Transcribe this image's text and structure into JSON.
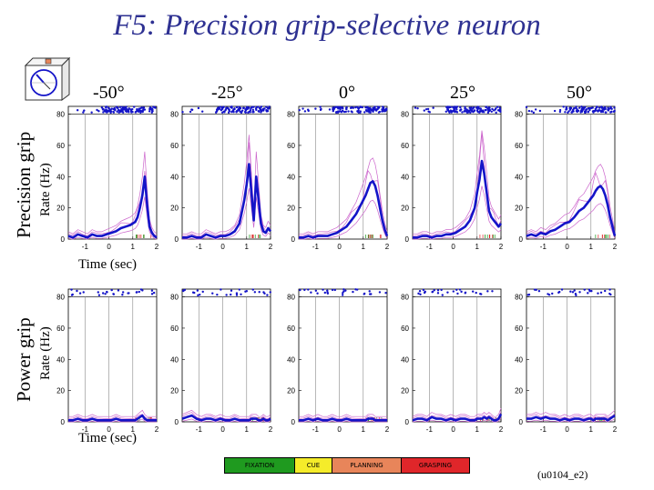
{
  "title": "F5: Precision grip-selective neuron",
  "code_label": "(u0104_e2)",
  "row_labels": [
    "Precision grip",
    "Power grip"
  ],
  "ylabel": "Rate (Hz)",
  "xlabel": "Time (sec)",
  "legend": {
    "items": [
      {
        "label": "FIXATION",
        "color": "#1f9a1f"
      },
      {
        "label": "CUE",
        "color": "#f5ec2a"
      },
      {
        "label": "PLANNING",
        "color": "#e8855a"
      },
      {
        "label": "GRASPING",
        "color": "#e0262a"
      }
    ]
  },
  "colors": {
    "main": "#1414c8",
    "envelope": "#cc66cc",
    "raster": "#1414c8",
    "title": "#2e3192"
  },
  "icon": "rotated-object-dial-icon",
  "chart_data": {
    "type": "line",
    "xlim": [
      -1.7,
      2
    ],
    "ylim": [
      0,
      85
    ],
    "xticks": [
      -1,
      0,
      1,
      2
    ],
    "yticks": [
      0,
      20,
      40,
      60,
      80
    ],
    "event_lines_sec": [
      -1,
      0,
      1
    ],
    "columns": [
      "-50°",
      "-25°",
      "0°",
      "25°",
      "50°"
    ],
    "x": [
      -1.7,
      -1.5,
      -1.3,
      -1.1,
      -0.9,
      -0.7,
      -0.5,
      -0.3,
      -0.1,
      0.1,
      0.3,
      0.5,
      0.7,
      0.9,
      1.0,
      1.1,
      1.2,
      1.3,
      1.4,
      1.5,
      1.6,
      1.7,
      1.8,
      1.9,
      2.0
    ],
    "rows": [
      {
        "name": "Precision grip",
        "panels": [
          [
            2,
            1,
            3,
            2,
            1,
            3,
            2,
            2,
            3,
            4,
            5,
            7,
            8,
            9,
            10,
            11,
            14,
            20,
            28,
            40,
            22,
            8,
            4,
            2,
            1
          ],
          [
            1,
            1,
            2,
            1,
            1,
            3,
            2,
            1,
            2,
            2,
            3,
            5,
            10,
            25,
            35,
            48,
            30,
            12,
            40,
            25,
            10,
            5,
            4,
            7,
            5
          ],
          [
            1,
            1,
            2,
            1,
            2,
            2,
            2,
            3,
            4,
            6,
            8,
            12,
            16,
            22,
            25,
            28,
            32,
            36,
            37,
            34,
            28,
            20,
            12,
            6,
            2
          ],
          [
            1,
            1,
            2,
            2,
            1,
            2,
            2,
            3,
            3,
            4,
            6,
            8,
            12,
            20,
            30,
            38,
            50,
            42,
            30,
            18,
            14,
            12,
            10,
            8,
            10
          ],
          [
            2,
            3,
            2,
            4,
            3,
            5,
            6,
            8,
            10,
            11,
            14,
            18,
            20,
            24,
            26,
            28,
            31,
            33,
            34,
            32,
            28,
            22,
            14,
            8,
            2
          ]
        ]
      },
      {
        "name": "Power grip",
        "panels": [
          [
            1,
            1,
            2,
            1,
            1,
            2,
            1,
            1,
            1,
            1,
            2,
            1,
            1,
            1,
            1,
            1,
            2,
            3,
            4,
            2,
            1,
            1,
            1,
            1,
            1
          ],
          [
            2,
            3,
            4,
            2,
            1,
            2,
            2,
            1,
            2,
            1,
            1,
            2,
            1,
            1,
            1,
            1,
            2,
            2,
            2,
            1,
            1,
            2,
            1,
            1,
            2
          ],
          [
            1,
            1,
            2,
            1,
            2,
            1,
            1,
            2,
            1,
            1,
            2,
            1,
            1,
            1,
            1,
            1,
            2,
            2,
            2,
            1,
            1,
            1,
            1,
            1,
            1
          ],
          [
            1,
            2,
            2,
            1,
            3,
            2,
            2,
            1,
            2,
            1,
            2,
            2,
            1,
            1,
            2,
            2,
            2,
            3,
            2,
            3,
            2,
            1,
            1,
            2,
            5
          ],
          [
            2,
            2,
            3,
            2,
            3,
            2,
            2,
            1,
            2,
            1,
            2,
            2,
            1,
            2,
            2,
            1,
            2,
            2,
            2,
            2,
            2,
            1,
            2,
            3,
            4
          ]
        ]
      }
    ]
  }
}
